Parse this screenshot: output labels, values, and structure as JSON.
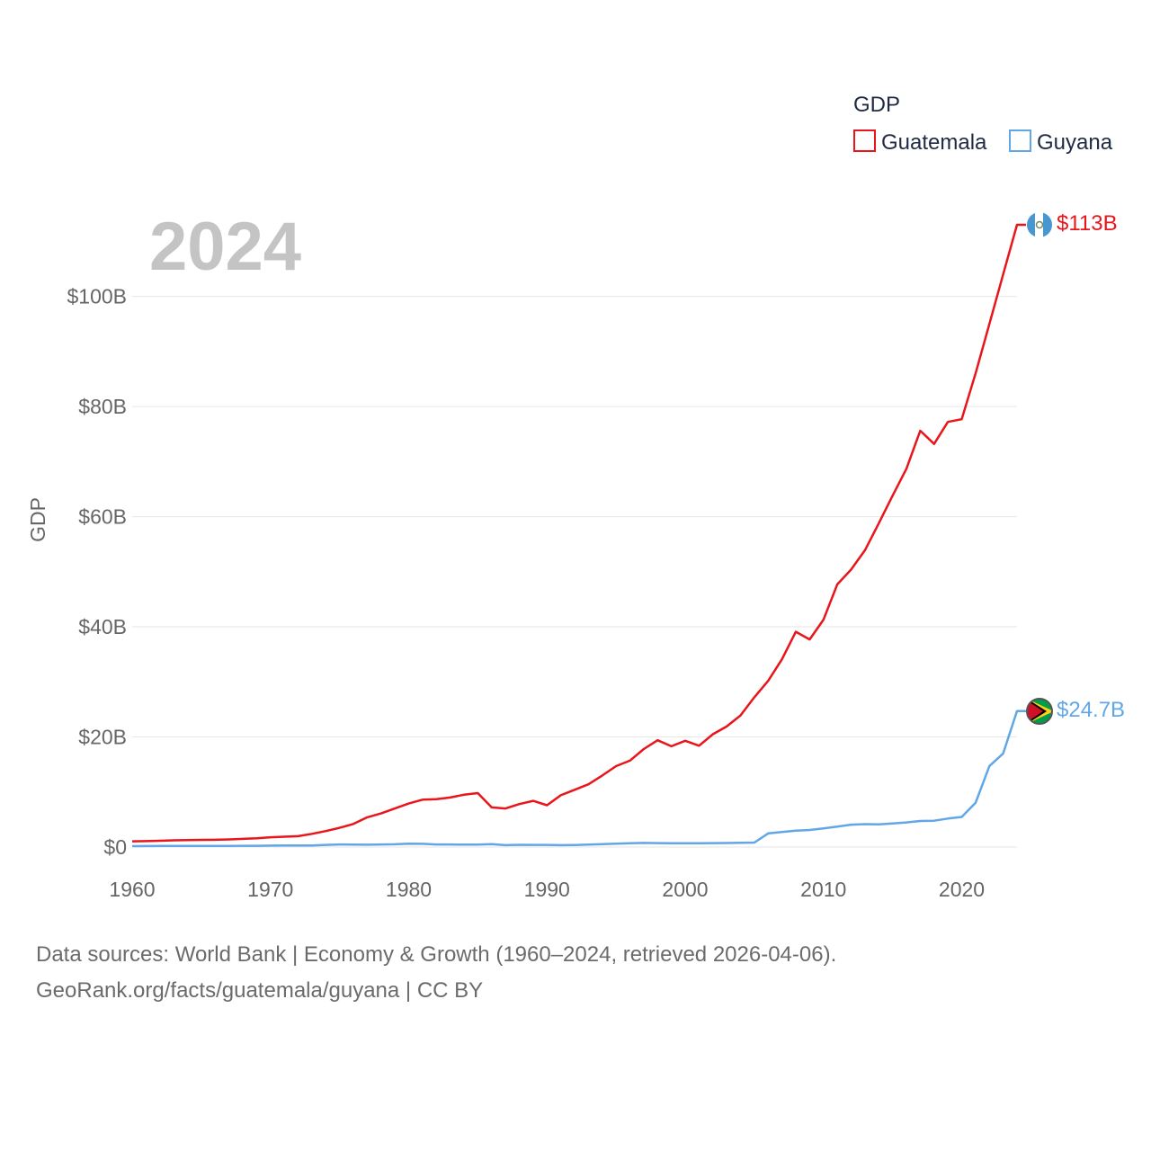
{
  "chart_data": {
    "type": "line",
    "title": "GDP",
    "year_label": "2024",
    "ylabel": "GDP",
    "xlabel": "",
    "xlim": [
      1960,
      2024
    ],
    "ylim": [
      0,
      113
    ],
    "x_ticks": [
      1960,
      1970,
      1980,
      1990,
      2000,
      2010,
      2020
    ],
    "x_tick_labels": [
      "1960",
      "1970",
      "1980",
      "1990",
      "2000",
      "2010",
      "2020"
    ],
    "y_ticks": [
      0,
      20,
      40,
      60,
      80,
      100
    ],
    "y_tick_labels": [
      "$0",
      "$20B",
      "$40B",
      "$60B",
      "$80B",
      "$100B"
    ],
    "grid": true,
    "legend": {
      "title": "GDP",
      "placement": "top-right"
    },
    "x": [
      1960,
      1961,
      1962,
      1963,
      1964,
      1965,
      1966,
      1967,
      1968,
      1969,
      1970,
      1971,
      1972,
      1973,
      1974,
      1975,
      1976,
      1977,
      1978,
      1979,
      1980,
      1981,
      1982,
      1983,
      1984,
      1985,
      1986,
      1987,
      1988,
      1989,
      1990,
      1991,
      1992,
      1993,
      1994,
      1995,
      1996,
      1997,
      1998,
      1999,
      2000,
      2001,
      2002,
      2003,
      2004,
      2005,
      2006,
      2007,
      2008,
      2009,
      2010,
      2011,
      2012,
      2013,
      2014,
      2015,
      2016,
      2017,
      2018,
      2019,
      2020,
      2021,
      2022,
      2023,
      2024
    ],
    "series": [
      {
        "name": "Guatemala",
        "color": "#e8151b",
        "end_label": "$113B",
        "values": [
          1.04,
          1.08,
          1.14,
          1.22,
          1.27,
          1.3,
          1.33,
          1.38,
          1.48,
          1.6,
          1.78,
          1.87,
          1.98,
          2.4,
          2.9,
          3.5,
          4.2,
          5.4,
          6.1,
          7.0,
          7.9,
          8.6,
          8.7,
          9.0,
          9.5,
          9.8,
          7.2,
          7.0,
          7.8,
          8.4,
          7.6,
          9.4,
          10.4,
          11.4,
          13.0,
          14.7,
          15.7,
          17.8,
          19.4,
          18.3,
          19.3,
          18.4,
          20.5,
          21.9,
          23.9,
          27.2,
          30.2,
          34.1,
          39.1,
          37.7,
          41.3,
          47.7,
          50.4,
          53.9,
          58.8,
          63.8,
          68.7,
          75.6,
          73.2,
          77.2,
          77.7,
          86.0,
          95.0,
          104.0,
          113.0
        ]
      },
      {
        "name": "Guyana",
        "color": "#61a7e8",
        "end_label": "$24.7B",
        "values": [
          0.17,
          0.18,
          0.19,
          0.19,
          0.19,
          0.2,
          0.21,
          0.22,
          0.23,
          0.23,
          0.26,
          0.27,
          0.28,
          0.3,
          0.4,
          0.47,
          0.45,
          0.43,
          0.47,
          0.5,
          0.6,
          0.58,
          0.48,
          0.47,
          0.44,
          0.45,
          0.52,
          0.34,
          0.41,
          0.39,
          0.4,
          0.35,
          0.37,
          0.44,
          0.54,
          0.62,
          0.7,
          0.75,
          0.72,
          0.69,
          0.71,
          0.7,
          0.72,
          0.74,
          0.79,
          0.82,
          2.49,
          2.74,
          2.98,
          3.1,
          3.4,
          3.7,
          4.06,
          4.17,
          4.13,
          4.28,
          4.47,
          4.74,
          4.79,
          5.17,
          5.47,
          8.04,
          14.72,
          17.0,
          24.7
        ]
      }
    ]
  },
  "footer": {
    "line1": "Data sources: World Bank | Economy & Growth (1960–2024, retrieved 2026-04-06).",
    "line2": "GeoRank.org/facts/guatemala/guyana | CC BY"
  }
}
